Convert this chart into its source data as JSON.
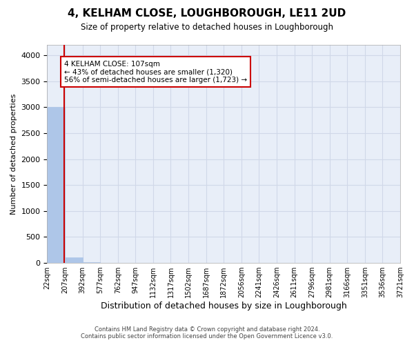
{
  "title": "4, KELHAM CLOSE, LOUGHBOROUGH, LE11 2UD",
  "subtitle": "Size of property relative to detached houses in Loughborough",
  "xlabel": "Distribution of detached houses by size in Loughborough",
  "ylabel": "Number of detached properties",
  "bin_edges": [
    "22sqm",
    "207sqm",
    "392sqm",
    "577sqm",
    "762sqm",
    "947sqm",
    "1132sqm",
    "1317sqm",
    "1502sqm",
    "1687sqm",
    "1872sqm",
    "2056sqm",
    "2241sqm",
    "2426sqm",
    "2611sqm",
    "2796sqm",
    "2981sqm",
    "3166sqm",
    "3351sqm",
    "3536sqm",
    "3721sqm"
  ],
  "bar_values": [
    3000,
    105,
    8,
    4,
    3,
    2,
    2,
    2,
    1,
    1,
    1,
    1,
    1,
    1,
    0,
    1,
    0,
    0,
    0,
    0
  ],
  "bar_color": "#aec6e8",
  "bar_edge_color": "#aec6e8",
  "property_line_x": 0.465,
  "property_line_color": "#cc0000",
  "annotation_text": "4 KELHAM CLOSE: 107sqm\n← 43% of detached houses are smaller (1,320)\n56% of semi-detached houses are larger (1,723) →",
  "annotation_box_color": "#ffffff",
  "annotation_box_edge_color": "#cc0000",
  "ylim": [
    0,
    4200
  ],
  "yticks": [
    0,
    500,
    1000,
    1500,
    2000,
    2500,
    3000,
    3500,
    4000
  ],
  "grid_color": "#d0d8e8",
  "background_color": "#e8eef8",
  "footer_line1": "Contains HM Land Registry data © Crown copyright and database right 2024.",
  "footer_line2": "Contains public sector information licensed under the Open Government Licence v3.0."
}
